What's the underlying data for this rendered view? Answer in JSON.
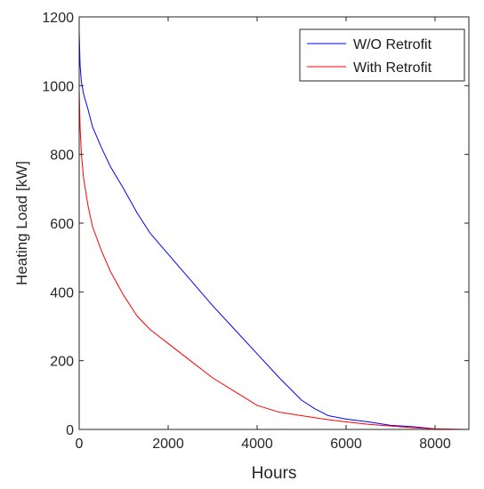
{
  "chart_data": {
    "type": "line",
    "xlabel": "Hours",
    "ylabel": "Heating Load [kW]",
    "xlim": [
      0,
      8760
    ],
    "ylim": [
      0,
      1200
    ],
    "xticks": [
      0,
      2000,
      4000,
      6000,
      8000
    ],
    "yticks": [
      0,
      200,
      400,
      600,
      800,
      1000,
      1200
    ],
    "grid": false,
    "legend_position": "top-right",
    "series": [
      {
        "name": "W/O Retrofit",
        "color": "#0000ff",
        "x": [
          0,
          20,
          50,
          100,
          200,
          300,
          500,
          700,
          1000,
          1300,
          1600,
          2000,
          2500,
          3000,
          3500,
          4000,
          4500,
          5000,
          5300,
          5600,
          6000,
          6500,
          7000,
          7500,
          7900,
          8000,
          8300,
          8760
        ],
        "y": [
          1160,
          1060,
          1010,
          975,
          930,
          880,
          820,
          765,
          700,
          630,
          570,
          510,
          435,
          360,
          290,
          220,
          150,
          85,
          60,
          40,
          30,
          22,
          12,
          8,
          3,
          1,
          0,
          0
        ]
      },
      {
        "name": "With Retrofit",
        "color": "#ff0000",
        "x": [
          0,
          20,
          50,
          100,
          200,
          300,
          500,
          700,
          1000,
          1300,
          1600,
          2000,
          2500,
          3000,
          3500,
          4000,
          4500,
          5000,
          5500,
          6000,
          6500,
          7000,
          7500,
          8000,
          8760
        ],
        "y": [
          990,
          880,
          800,
          730,
          650,
          590,
          520,
          460,
          390,
          330,
          290,
          250,
          200,
          150,
          110,
          70,
          50,
          40,
          30,
          22,
          15,
          10,
          5,
          2,
          0
        ]
      }
    ]
  }
}
